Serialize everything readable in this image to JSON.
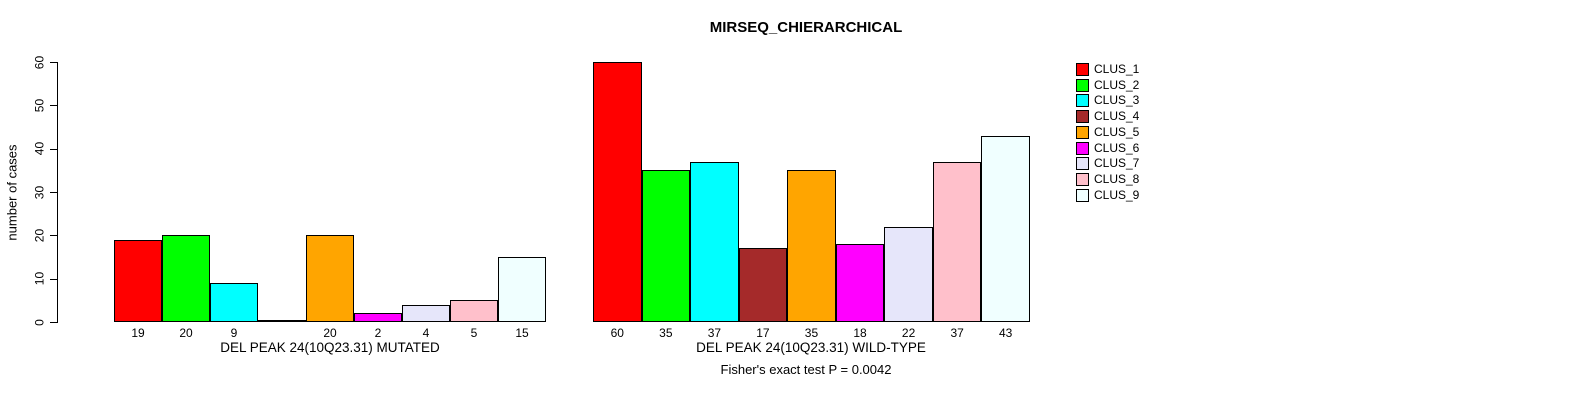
{
  "title": "MIRSEQ_CHIERARCHICAL",
  "chart_data": {
    "type": "bar",
    "title": "MIRSEQ_CHIERARCHICAL",
    "ylabel": "number of cases",
    "xlabel": "",
    "ylim": [
      0,
      60
    ],
    "yticks": [
      0,
      10,
      20,
      30,
      40,
      50,
      60
    ],
    "grid": false,
    "bar_border_color": "#000000",
    "categories": [
      "CLUS_1",
      "CLUS_2",
      "CLUS_3",
      "CLUS_4",
      "CLUS_5",
      "CLUS_6",
      "CLUS_7",
      "CLUS_8",
      "CLUS_9"
    ],
    "colors": [
      "#FF0000",
      "#00FF00",
      "#00FFFF",
      "#A52A2A",
      "#FFA500",
      "#FF00FF",
      "#E6E6FA",
      "#FFC0CB",
      "#F0FFFF"
    ],
    "groups": [
      {
        "label": "DEL PEAK 24(10Q23.31) MUTATED",
        "values": [
          19,
          20,
          9,
          0,
          20,
          2,
          4,
          5,
          15
        ]
      },
      {
        "label": "DEL PEAK 24(10Q23.31) WILD-TYPE",
        "values": [
          60,
          35,
          37,
          17,
          35,
          18,
          22,
          37,
          43
        ]
      }
    ],
    "legend": {
      "position": "right",
      "entries": [
        "CLUS_1",
        "CLUS_2",
        "CLUS_3",
        "CLUS_4",
        "CLUS_5",
        "CLUS_6",
        "CLUS_7",
        "CLUS_8",
        "CLUS_9"
      ]
    },
    "annotation": "Fisher's exact test P = 0.0042"
  }
}
